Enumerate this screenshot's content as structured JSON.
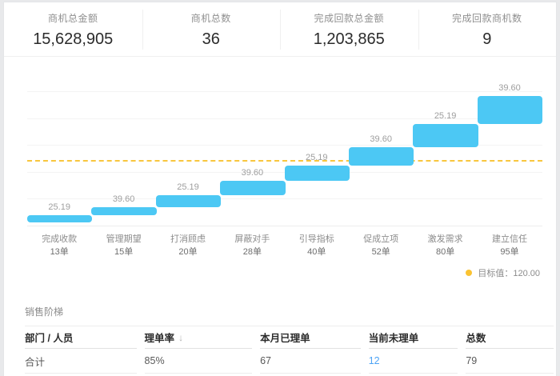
{
  "kpis": [
    {
      "label": "商机总金额",
      "value": "15,628,905"
    },
    {
      "label": "商机总数",
      "value": "36"
    },
    {
      "label": "完成回款总金额",
      "value": "1,203,865"
    },
    {
      "label": "完成回款商机数",
      "value": "9"
    }
  ],
  "chart_data": {
    "type": "bar",
    "subtype": "waterfall-steps",
    "stages": [
      {
        "name": "完成收款",
        "count": 13,
        "count_label": "13单",
        "value_label": "25.19"
      },
      {
        "name": "管理期望",
        "count": 15,
        "count_label": "15单",
        "value_label": "39.60"
      },
      {
        "name": "打消顾虑",
        "count": 20,
        "count_label": "20单",
        "value_label": "25.19"
      },
      {
        "name": "屏蔽对手",
        "count": 28,
        "count_label": "28单",
        "value_label": "39.60"
      },
      {
        "name": "引导指标",
        "count": 40,
        "count_label": "40单",
        "value_label": "25.19"
      },
      {
        "name": "促成立项",
        "count": 52,
        "count_label": "52单",
        "value_label": "39.60"
      },
      {
        "name": "激发需求",
        "count": 80,
        "count_label": "80单",
        "value_label": "25.19"
      },
      {
        "name": "建立信任",
        "count": 95,
        "count_label": "95单",
        "value_label": "39.60"
      }
    ],
    "target": {
      "value": 120.0,
      "legend_label": "目标值：120.00"
    },
    "colors": {
      "bar": "#4cc8f4",
      "target_line": "#f8c63e",
      "legend_dot": "#fbc332"
    },
    "grid": true,
    "legend_position": "bottom-right"
  },
  "table": {
    "title": "销售阶梯",
    "columns": [
      "部门 / 人员",
      "理单率",
      "本月已理单",
      "当前未理单",
      "总数"
    ],
    "sort_indicator": "↓",
    "rows": [
      {
        "name": "合计",
        "rate": "85%",
        "handled_this_month": "67",
        "pending": "12",
        "total": "79"
      }
    ]
  }
}
